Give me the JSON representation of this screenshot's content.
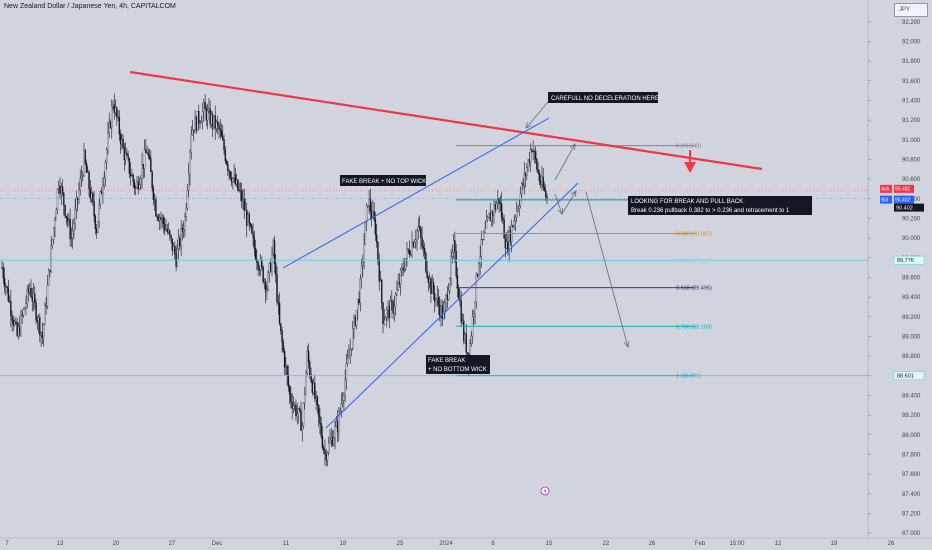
{
  "header": {
    "title": "New Zealand Dollar / Japanese Yen, 4h, CAPITALCOM",
    "currency": "JPY"
  },
  "price_axis": {
    "ticks": [
      92.2,
      92.0,
      91.8,
      91.6,
      91.4,
      91.2,
      91.0,
      90.8,
      90.6,
      90.4,
      90.2,
      90.0,
      89.8,
      89.6,
      89.4,
      89.2,
      89.0,
      88.8,
      88.6,
      88.4,
      88.2,
      88.0,
      87.8,
      87.6,
      87.4,
      87.2,
      87.0
    ]
  },
  "price_tick_labels": [
    "92.200",
    "92.000",
    "91.800",
    "91.600",
    "91.400",
    "91.200",
    "91.000",
    "90.800",
    "90.600",
    "90.400",
    "90.200",
    "90.000",
    "89.800",
    "89.600",
    "89.400",
    "89.200",
    "89.000",
    "88.800",
    "88.600",
    "88.400",
    "88.200",
    "88.000",
    "87.800",
    "87.600",
    "87.400",
    "87.200",
    "87.000"
  ],
  "time_axis": {
    "labels": [
      "7",
      "13",
      "20",
      "27",
      "Dec",
      "11",
      "18",
      "25",
      "2024",
      "8",
      "15",
      "22",
      "26",
      "Feb",
      "15:00",
      "12",
      "19",
      "26"
    ]
  },
  "price_tags": {
    "ask": {
      "label": "Ask",
      "value": "90.481",
      "price": 90.481,
      "color": "#f23645"
    },
    "bid": {
      "label": "Bid",
      "value": "90.402",
      "price": 90.402,
      "color": "#2962ff"
    },
    "last": {
      "value": "90.402",
      "price": 90.402,
      "color": "#131722"
    },
    "horizontal_1": {
      "value": "89.776",
      "price": 89.776,
      "color": "#00bcd4"
    },
    "horizontal_2": {
      "value": "88.601",
      "price": 88.601,
      "color": "#00bcd4"
    }
  },
  "fib_levels": [
    {
      "label": "0 (90.940)",
      "price": 90.94,
      "color": "#787b86"
    },
    {
      "label": "0.236 (90.389)",
      "price": 90.389,
      "color": "#089981"
    },
    {
      "label": "0.382 (90.047)",
      "price": 90.047,
      "color": "#f57c00"
    },
    {
      "label": "0.5 (89.770)",
      "price": 89.77,
      "color": "#90caf9"
    },
    {
      "label": "0.618 (89.496)",
      "price": 89.496,
      "color": "#311b92"
    },
    {
      "label": "0.786 (89.103)",
      "price": 89.103,
      "color": "#00acc1"
    },
    {
      "label": "1 (88.601)",
      "price": 88.601,
      "color": "#00bcd4"
    }
  ],
  "annotations": {
    "carefull": "CAREFULL NO DECELERATION HERE",
    "fake_top": "FAKE BREAK + NO TOP WICK",
    "fake_bottom_1": "FAKE BREAK",
    "fake_bottom_2": "+ NO BOTTOM WICK",
    "looking_1": "LOOKING FOR BREAK AND PULL BACK",
    "looking_2": "Break 0.236 pullback 0.382 to > 0.236 and retracement to 1"
  },
  "chart_data": {
    "type": "candlestick",
    "title": "New Zealand Dollar / Japanese Yen, 4h, CAPITALCOM",
    "y_range": [
      86.95,
      92.3
    ],
    "price_path": [
      {
        "i": 0,
        "p": 89.7
      },
      {
        "i": 12,
        "p": 89.0
      },
      {
        "i": 22,
        "p": 89.5
      },
      {
        "i": 32,
        "p": 89.0
      },
      {
        "i": 45,
        "p": 90.6
      },
      {
        "i": 55,
        "p": 90.0
      },
      {
        "i": 65,
        "p": 90.8
      },
      {
        "i": 75,
        "p": 90.1
      },
      {
        "i": 88,
        "p": 91.4
      },
      {
        "i": 96,
        "p": 90.9
      },
      {
        "i": 106,
        "p": 90.5
      },
      {
        "i": 115,
        "p": 90.9
      },
      {
        "i": 122,
        "p": 90.3
      },
      {
        "i": 130,
        "p": 90.1
      },
      {
        "i": 138,
        "p": 89.8
      },
      {
        "i": 145,
        "p": 90.2
      },
      {
        "i": 150,
        "p": 91.1
      },
      {
        "i": 160,
        "p": 91.3
      },
      {
        "i": 172,
        "p": 91.1
      },
      {
        "i": 180,
        "p": 90.7
      },
      {
        "i": 190,
        "p": 90.4
      },
      {
        "i": 200,
        "p": 89.9
      },
      {
        "i": 210,
        "p": 89.5
      },
      {
        "i": 215,
        "p": 89.9
      },
      {
        "i": 220,
        "p": 89.1
      },
      {
        "i": 228,
        "p": 88.4
      },
      {
        "i": 238,
        "p": 88.1
      },
      {
        "i": 242,
        "p": 88.8
      },
      {
        "i": 256,
        "p": 87.8
      },
      {
        "i": 266,
        "p": 88.1
      },
      {
        "i": 275,
        "p": 88.8
      },
      {
        "i": 284,
        "p": 89.5
      },
      {
        "i": 290,
        "p": 90.4
      },
      {
        "i": 296,
        "p": 90.1
      },
      {
        "i": 302,
        "p": 89.2
      },
      {
        "i": 310,
        "p": 89.3
      },
      {
        "i": 320,
        "p": 89.8
      },
      {
        "i": 330,
        "p": 90.1
      },
      {
        "i": 340,
        "p": 89.5
      },
      {
        "i": 350,
        "p": 89.2
      },
      {
        "i": 358,
        "p": 89.9
      },
      {
        "i": 366,
        "p": 89.0
      },
      {
        "i": 370,
        "p": 88.8
      },
      {
        "i": 378,
        "p": 89.8
      },
      {
        "i": 386,
        "p": 90.2
      },
      {
        "i": 394,
        "p": 90.4
      },
      {
        "i": 400,
        "p": 89.9
      },
      {
        "i": 406,
        "p": 90.2
      },
      {
        "i": 414,
        "p": 90.6
      },
      {
        "i": 420,
        "p": 90.95
      },
      {
        "i": 426,
        "p": 90.6
      },
      {
        "i": 432,
        "p": 90.4
      }
    ]
  }
}
